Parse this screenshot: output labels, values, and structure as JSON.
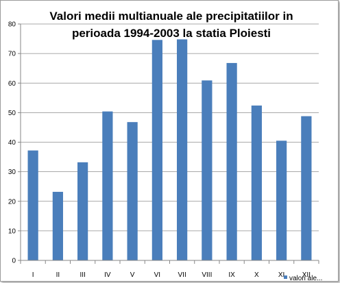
{
  "chart_data": {
    "type": "bar",
    "title_line1": "Valori medii multianuale ale precipitatiilor in",
    "title_line2": "perioada 1994-2003 la statia Ploiesti",
    "categories": [
      "I",
      "II",
      "III",
      "IV",
      "V",
      "VI",
      "VII",
      "VIII",
      "IX",
      "X",
      "XI",
      "XII"
    ],
    "series": [
      {
        "name": "valori ale...",
        "values": [
          37.2,
          23.2,
          33.2,
          50.4,
          46.8,
          74.6,
          74.8,
          60.9,
          66.8,
          52.4,
          40.5,
          48.8
        ]
      }
    ],
    "ylim": [
      0,
      80
    ],
    "yticks": [
      0,
      10,
      20,
      30,
      40,
      50,
      60,
      70,
      80
    ],
    "grid": true,
    "legend_position": "bottom-right",
    "colors": {
      "bar": "#4a7ebb",
      "grid": "#8c8c8c",
      "axis": "#868686"
    }
  }
}
